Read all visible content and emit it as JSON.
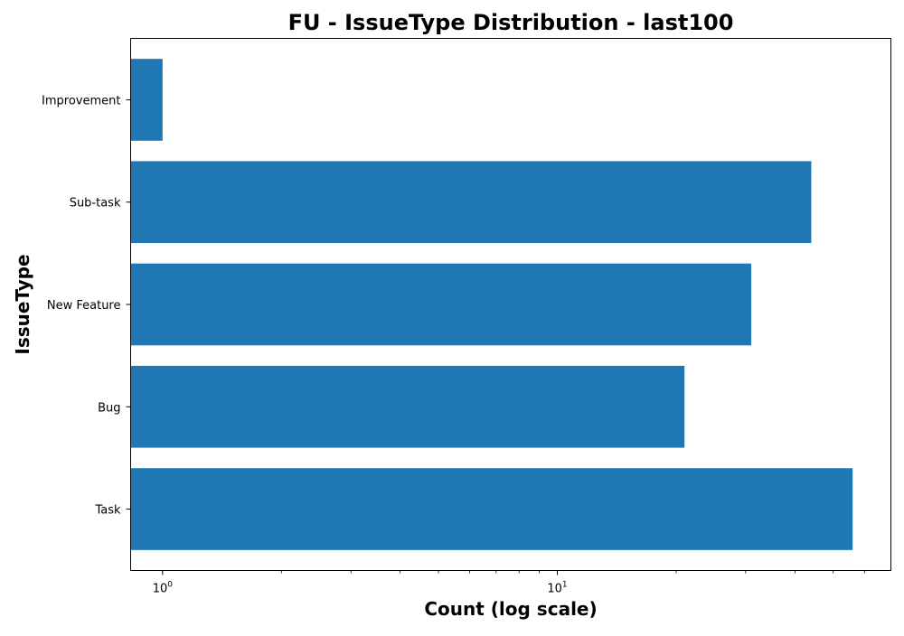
{
  "chart_data": {
    "type": "bar",
    "orientation": "horizontal",
    "title": "FU - IssueType Distribution - last100",
    "xlabel": "Count (log scale)",
    "ylabel": "IssueType",
    "x_scale": "log",
    "xlim": [
      0.83,
      70
    ],
    "categories": [
      "Task",
      "Bug",
      "New Feature",
      "Sub-task",
      "Improvement"
    ],
    "values": [
      56,
      21,
      31,
      44,
      1
    ],
    "major_ticks": [
      {
        "value": 1,
        "base": "10",
        "exp": "0"
      },
      {
        "value": 10,
        "base": "10",
        "exp": "1"
      }
    ],
    "minor_ticks": [
      2,
      3,
      4,
      5,
      6,
      7,
      8,
      9,
      20,
      30,
      40,
      50,
      60
    ],
    "bar_color": "#1f77b4",
    "grid": false,
    "legend": "none"
  }
}
